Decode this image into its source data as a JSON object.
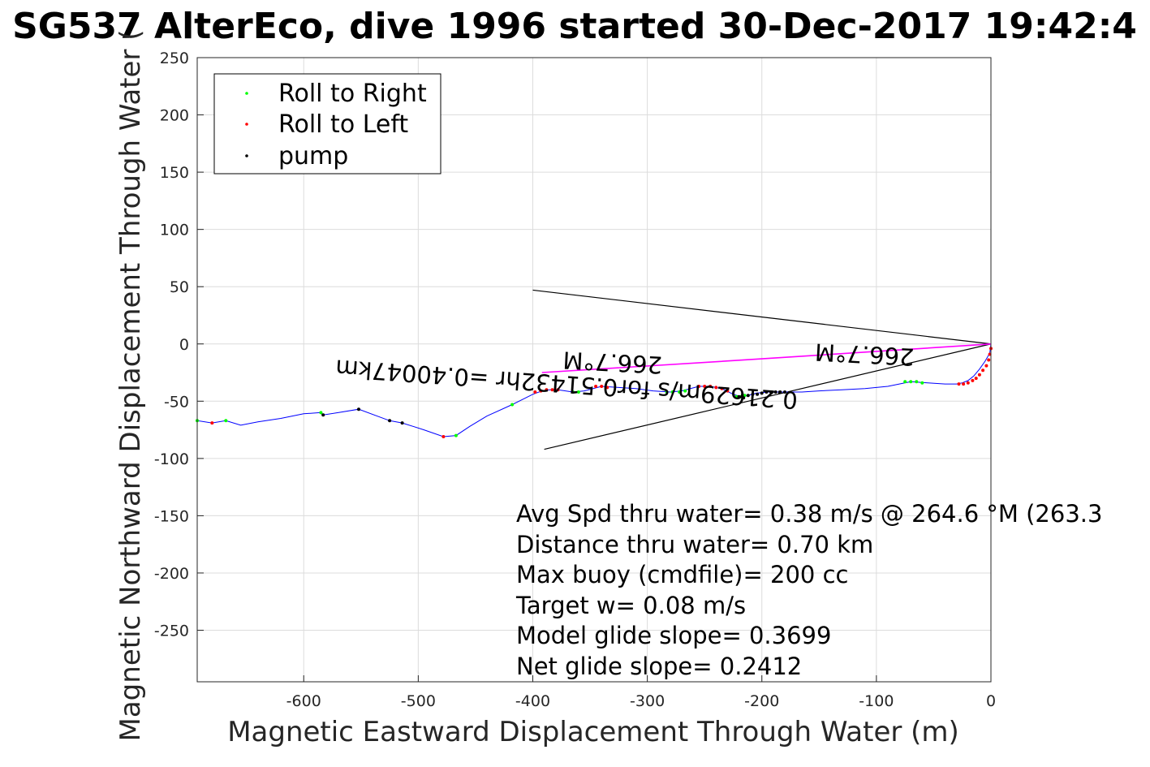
{
  "chart_data": {
    "type": "scatter",
    "title": "SG537 AlterEco, dive 1996 started 30-Dec-2017 19:42:4",
    "xlabel": "Magnetic Eastward Displacement Through Water (m)",
    "ylabel": "Magnetic Northward Displacement Through Water (",
    "xlim": [
      -693,
      0
    ],
    "ylim": [
      -295,
      250
    ],
    "grid": true,
    "x_ticks": [
      -600,
      -500,
      -400,
      -300,
      -200,
      -100,
      0
    ],
    "y_ticks": [
      250,
      200,
      150,
      100,
      50,
      0,
      -50,
      -100,
      -150,
      -200,
      -250
    ],
    "legend": {
      "placement": "top-left",
      "entries": [
        {
          "label": "Roll to Right",
          "color": "#00ff00"
        },
        {
          "label": "Roll to Left",
          "color": "#ff0000"
        },
        {
          "label": "pump",
          "color": "#000000"
        }
      ]
    },
    "colors": {
      "track": "#0000ff",
      "path_marker": "#ff00ff",
      "annotation_line": "#000000"
    },
    "series": [
      {
        "name": "track",
        "kind": "line",
        "x": [
          -693,
          -680,
          -668,
          -655,
          -640,
          -620,
          -600,
          -586,
          -583,
          -570,
          -552,
          -525,
          -514,
          -495,
          -478,
          -467,
          -455,
          -440,
          -418,
          -400,
          -392,
          -385,
          -378,
          -365,
          -355,
          -340,
          -325,
          -310,
          -295,
          -280,
          -270,
          -255,
          -245,
          -235,
          -225,
          -218,
          -212,
          -205,
          -195,
          -185,
          -178,
          -165,
          -150,
          -130,
          -110,
          -90,
          -70,
          -55,
          -40,
          -30,
          -25,
          -20,
          -15,
          -10,
          -5,
          -1,
          0
        ],
        "y": [
          -67,
          -69,
          -67,
          -71,
          -68,
          -65,
          -61,
          -60,
          -62,
          -60,
          -57,
          -67,
          -69,
          -75,
          -81,
          -80,
          -72,
          -63,
          -53,
          -44,
          -41,
          -40,
          -40,
          -42,
          -41,
          -37,
          -38,
          -39,
          -41,
          -42,
          -41,
          -37,
          -37,
          -39,
          -44,
          -46,
          -45,
          -43,
          -42,
          -42,
          -42,
          -42,
          -41,
          -40,
          -39,
          -37,
          -33,
          -34,
          -35,
          -35,
          -34,
          -32,
          -28,
          -22,
          -15,
          -8,
          0
        ]
      },
      {
        "name": "Roll to Right",
        "kind": "points",
        "x": [
          -693,
          -668,
          -585,
          -467,
          -418,
          -365,
          -360,
          -283,
          -278,
          -272,
          -267,
          -222,
          -218,
          -215,
          -75,
          -70,
          -65,
          -60
        ],
        "y": [
          -67,
          -67,
          -60,
          -80,
          -53,
          -42,
          -42,
          -42,
          -42,
          -42,
          -41,
          -46,
          -46,
          -45,
          -33,
          -33,
          -33,
          -34
        ]
      },
      {
        "name": "Roll to Left",
        "kind": "points",
        "x": [
          -680,
          -478,
          -398,
          -393,
          -388,
          -383,
          -378,
          -345,
          -340,
          -335,
          -255,
          -250,
          -245,
          -240,
          -235,
          -230,
          -28,
          -24,
          -20,
          -16,
          -13,
          -10,
          -7,
          -4,
          -2,
          -1,
          0
        ],
        "y": [
          -69,
          -81,
          -42,
          -41,
          -40,
          -40,
          -40,
          -37,
          -37,
          -38,
          -37,
          -37,
          -37,
          -38,
          -39,
          -41,
          -35,
          -35,
          -34,
          -32,
          -30,
          -27,
          -23,
          -19,
          -14,
          -9,
          -4
        ]
      },
      {
        "name": "pump",
        "kind": "points",
        "x": [
          -583,
          -552,
          -525,
          -514,
          -220,
          -216,
          -212,
          -208,
          -204,
          -200,
          -196,
          -192,
          -188,
          -184,
          -180
        ],
        "y": [
          -62,
          -57,
          -67,
          -69,
          -46,
          -47,
          -45,
          -44,
          -44,
          -43,
          -42,
          -42,
          -42,
          -42,
          -42
        ]
      },
      {
        "name": "average path",
        "kind": "line",
        "x": [
          0,
          -200,
          -392
        ],
        "y": [
          0,
          -13,
          -25
        ]
      }
    ],
    "annotation_lines": [
      {
        "x": [
          0,
          -400
        ],
        "y": [
          0,
          47
        ]
      },
      {
        "x": [
          0,
          -390
        ],
        "y": [
          0,
          -92
        ]
      }
    ],
    "annotations": [
      {
        "text": "266.7°M",
        "x": -330,
        "y": -9,
        "rotate": 183
      },
      {
        "text": "0.21629m/s for0.51432hr =0.40047km",
        "x": -370,
        "y": -28,
        "rotate": 184
      },
      {
        "text": "266.7°M",
        "x": -110,
        "y": -2,
        "rotate": 183
      }
    ],
    "stats": [
      "Avg Spd thru water=  0.38 m/s @ 264.6 °M (263.3",
      "Distance thru water=  0.70 km",
      "Max buoy (cmdfile)= 200 cc",
      "Target w= 0.08 m/s",
      "Model glide slope= 0.3699",
      "Net glide slope= 0.2412"
    ]
  }
}
